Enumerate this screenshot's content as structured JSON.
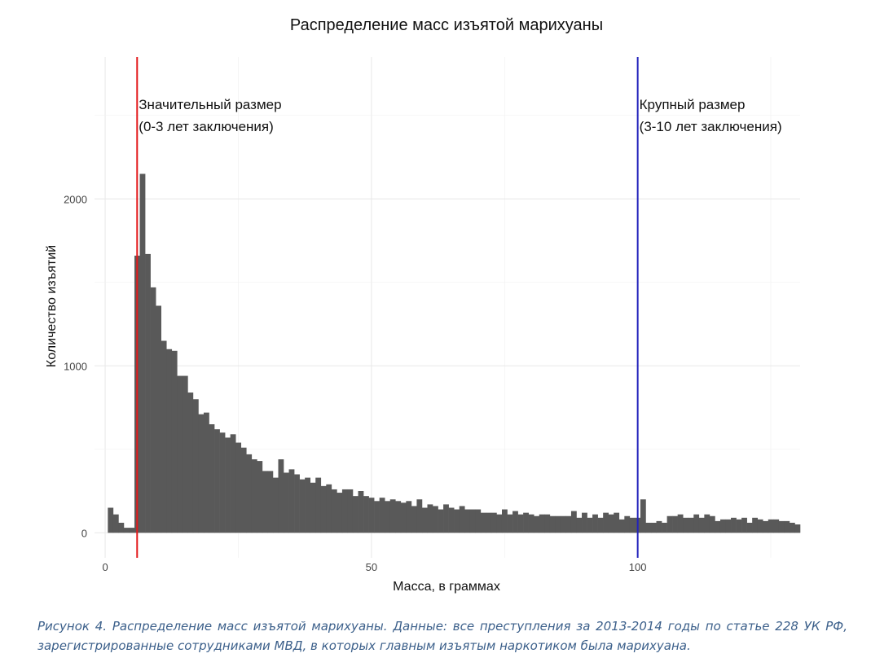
{
  "chart_data": {
    "type": "bar",
    "title": "Распределение масс изъятой марихуаны",
    "xlabel": "Масса, в граммах",
    "ylabel": "Количество изъятий",
    "xlim": [
      -2,
      130.5
    ],
    "ylim": [
      -150,
      2850
    ],
    "x_ticks": [
      0,
      50,
      100
    ],
    "y_ticks": [
      0,
      1000,
      2000
    ],
    "grid": true,
    "bin_width": 1,
    "bins_start": 0.5,
    "values": [
      150,
      110,
      60,
      30,
      30,
      1660,
      2150,
      1670,
      1470,
      1360,
      1150,
      1100,
      1090,
      940,
      940,
      840,
      800,
      710,
      720,
      650,
      620,
      600,
      570,
      590,
      540,
      510,
      470,
      440,
      430,
      370,
      370,
      330,
      440,
      360,
      380,
      350,
      320,
      330,
      300,
      330,
      280,
      290,
      260,
      240,
      260,
      260,
      220,
      250,
      220,
      210,
      190,
      210,
      190,
      200,
      190,
      180,
      190,
      160,
      200,
      150,
      170,
      160,
      140,
      170,
      150,
      140,
      160,
      140,
      140,
      140,
      120,
      120,
      120,
      110,
      140,
      110,
      130,
      110,
      120,
      110,
      100,
      110,
      110,
      100,
      100,
      100,
      100,
      130,
      90,
      120,
      90,
      110,
      90,
      120,
      110,
      120,
      80,
      100,
      90,
      90,
      200,
      60,
      60,
      70,
      60,
      100,
      100,
      110,
      90,
      90,
      110,
      90,
      110,
      100,
      70,
      80,
      80,
      90,
      80,
      90,
      60,
      90,
      80,
      70,
      80,
      80,
      70,
      70,
      60,
      50
    ],
    "vlines": [
      {
        "x": 6,
        "color": "#e31a1c",
        "label_lines": [
          "Значительный размер",
          "(0-3 лет заключения)"
        ]
      },
      {
        "x": 100,
        "color": "#2222bb",
        "label_lines": [
          "Крупный размер",
          "(3-10 лет заключения)"
        ]
      }
    ],
    "bar_color": "#595959"
  },
  "caption": "Рисунок 4. Распределение масс изъятой марихуаны. Данные: все преступления за 2013-2014 годы по статье 228 УК РФ, зарегистрированные сотрудниками МВД, в которых главным изъятым наркотиком была марихуана."
}
